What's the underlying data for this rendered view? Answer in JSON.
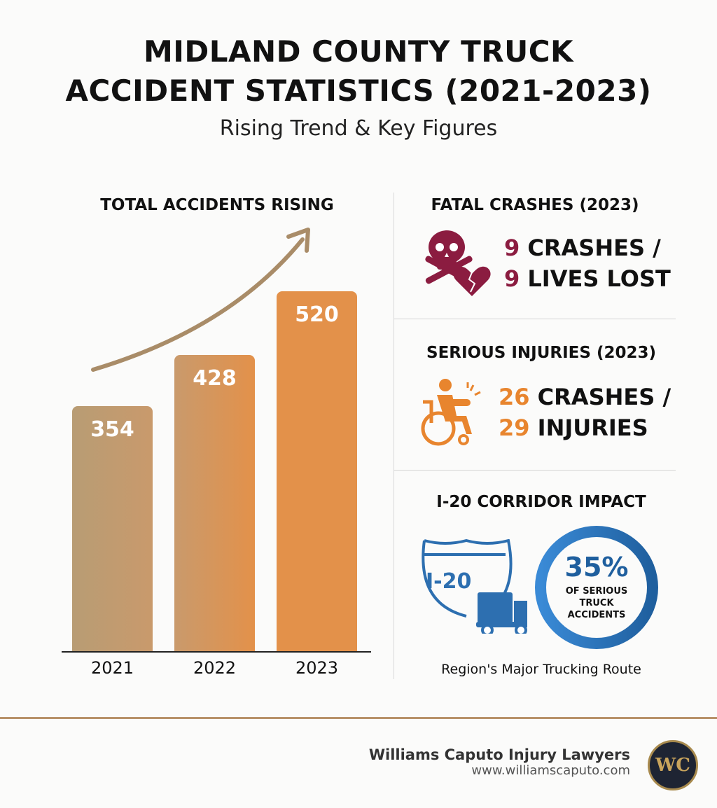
{
  "header": {
    "title_line1": "MIDLAND COUNTY TRUCK",
    "title_line2": "ACCIDENT STATISTICS (2021-2023)",
    "subtitle": "Rising Trend & Key Figures"
  },
  "chart_data": {
    "type": "bar",
    "title": "TOTAL ACCIDENTS RISING",
    "categories": [
      "2021",
      "2022",
      "2023"
    ],
    "values": [
      354,
      428,
      520
    ],
    "value_labels": [
      "354",
      "428",
      "520"
    ],
    "xlabel": "",
    "ylabel": "",
    "ylim": [
      0,
      530
    ],
    "grid": false,
    "trend_arrow": "up",
    "colors": [
      "#b89c74",
      "#c99a6c",
      "#e3914a"
    ]
  },
  "fatal": {
    "heading": "FATAL CRASHES (2023)",
    "line1_num": "9",
    "line1_text": "CRASHES /",
    "line2_num": "9",
    "line2_text": "LIVES LOST",
    "icon": "skull-crossbones-broken-heart-icon",
    "color": "#8b1c40"
  },
  "injuries": {
    "heading": "SERIOUS INJURIES (2023)",
    "line1_num": "26",
    "line1_text": "CRASHES /",
    "line2_num": "29",
    "line2_text": "INJURIES",
    "icon": "wheelchair-injured-person-icon",
    "color": "#e8852e"
  },
  "corridor": {
    "heading": "I-20 CORRIDOR IMPACT",
    "shield_label": "I-20",
    "percent": "35%",
    "percent_caption_1": "OF SERIOUS",
    "percent_caption_2": "TRUCK",
    "percent_caption_3": "ACCIDENTS",
    "caption": "Region's Major Trucking Route",
    "color": "#2d6fb0"
  },
  "footer": {
    "firm": "Williams Caputo Injury Lawyers",
    "url": "www.williamscaputo.com",
    "logo_text": "WC",
    "accent": "#b8926a"
  }
}
